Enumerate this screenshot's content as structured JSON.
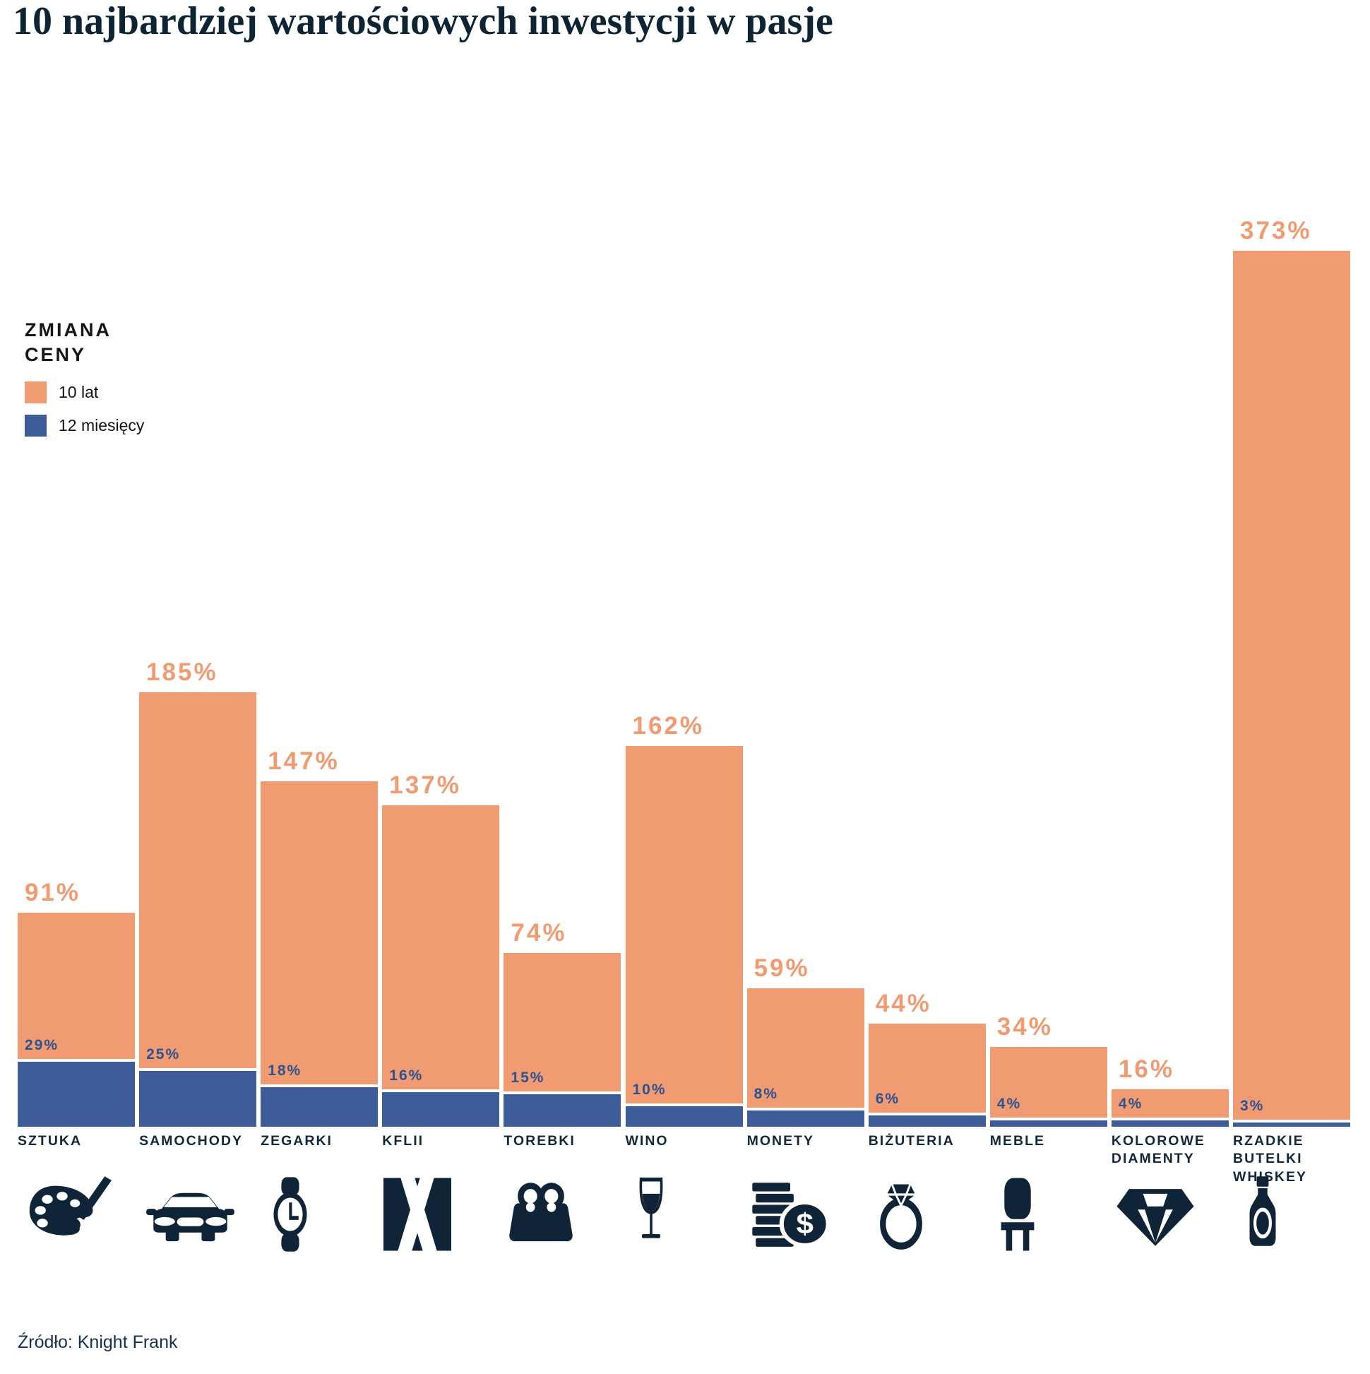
{
  "title": "10 najbardziej wartościowych inwestycji w pasje",
  "source": "Źródło: Knight Frank",
  "legend": {
    "title": "ZMIANA CENY",
    "items": [
      {
        "label": "10 lat",
        "color": "#F09B72"
      },
      {
        "label": "12 miesięcy",
        "color": "#3D5C98"
      }
    ]
  },
  "colors": {
    "orange": "#F09B72",
    "blue": "#3D5C98",
    "blue_label": "#2E5190",
    "navy_text": "#13293B",
    "icon": "#0F2537"
  },
  "chart_data": {
    "type": "bar",
    "title": "10 najbardziej wartościowych inwestycji w pasje",
    "xlabel": "",
    "ylabel": "Zmiana ceny (%)",
    "ylim": [
      0,
      373
    ],
    "grid": false,
    "legend_position": "upper-left",
    "value_labels": true,
    "unit": "%",
    "categories": [
      "SZTUKA",
      "SAMOCHODY",
      "ZEGARKI",
      "KFLII",
      "TOREBKI",
      "WINO",
      "MONETY",
      "BIŻUTERIA",
      "MEBLE",
      "KOLOROWE DIAMENTY",
      "RZADKIE BUTELKI WHISKEY"
    ],
    "icons": [
      "palette-icon",
      "car-icon",
      "watch-icon",
      "kfii-icon",
      "handbag-icon",
      "wine-glass-icon",
      "coins-icon",
      "ring-icon",
      "chair-icon",
      "diamond-icon",
      "whiskey-bottle-icon"
    ],
    "series": [
      {
        "name": "10 lat",
        "color": "#F09B72",
        "values": [
          91,
          185,
          147,
          137,
          74,
          162,
          59,
          44,
          34,
          16,
          373
        ]
      },
      {
        "name": "12 miesięcy",
        "color": "#3D5C98",
        "values": [
          29,
          25,
          18,
          16,
          15,
          10,
          8,
          6,
          4,
          4,
          3
        ]
      }
    ]
  }
}
